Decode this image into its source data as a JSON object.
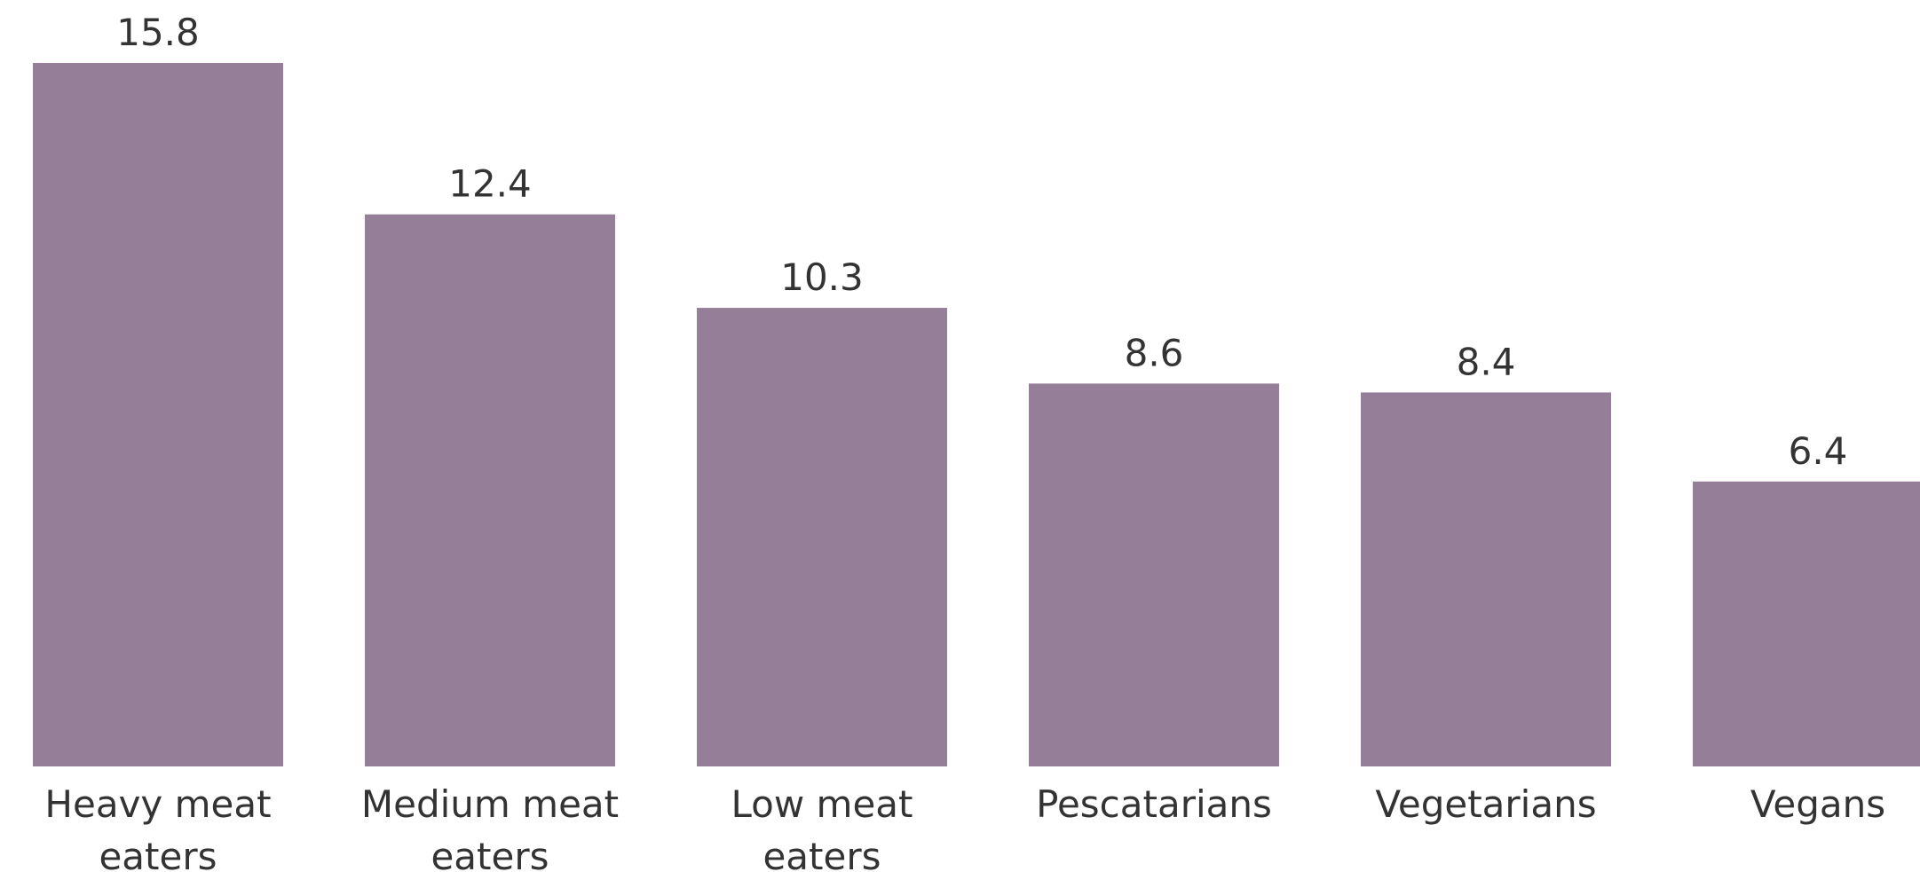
{
  "colors": {
    "bar": "#957f98",
    "text": "#333333",
    "background": "#ffffff"
  },
  "chart_data": {
    "type": "bar",
    "categories": [
      [
        "Heavy meat",
        "eaters"
      ],
      [
        "Medium meat",
        "eaters"
      ],
      [
        "Low meat",
        "eaters"
      ],
      [
        "Pescatarians"
      ],
      [
        "Vegetarians"
      ],
      [
        "Vegans"
      ]
    ],
    "values": [
      15.8,
      12.4,
      10.3,
      8.6,
      8.4,
      6.4
    ],
    "value_labels": [
      "15.8",
      "12.4",
      "10.3",
      "8.6",
      "8.4",
      "6.4"
    ],
    "title": "",
    "xlabel": "",
    "ylabel": "",
    "ylim": [
      0,
      15.8
    ],
    "grid": false,
    "legend": "none"
  }
}
